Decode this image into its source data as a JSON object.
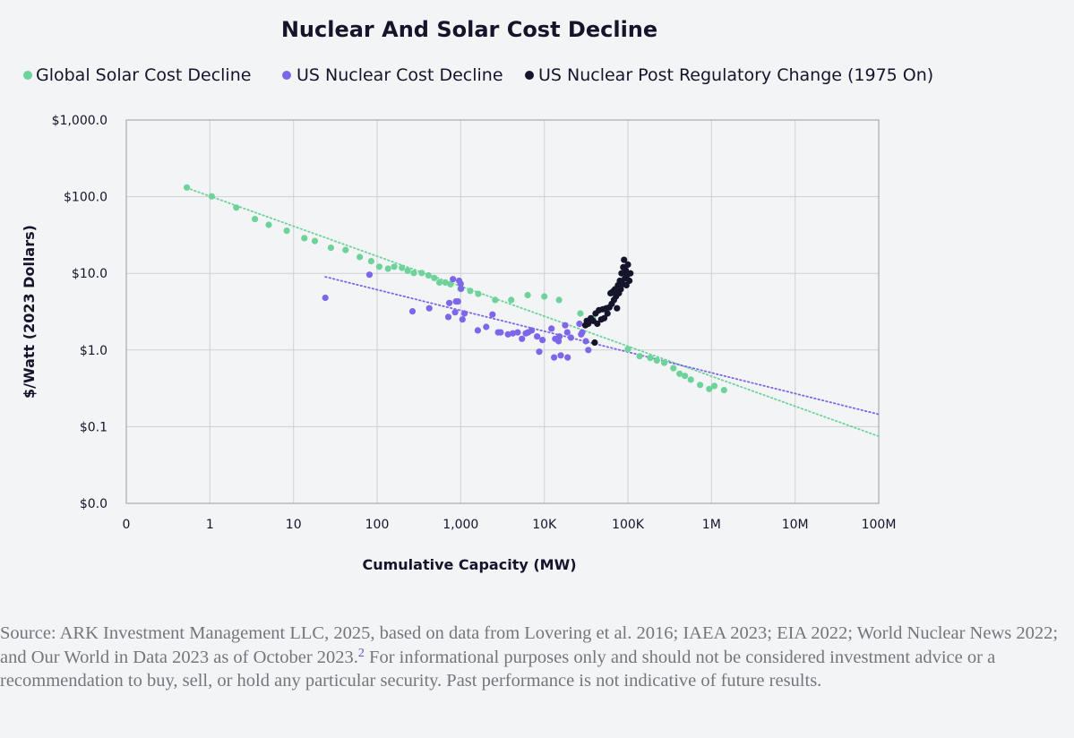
{
  "chart_data": {
    "type": "scatter",
    "title": "Nuclear And Solar Cost Decline",
    "xlabel": "Cumulative Capacity (MW)",
    "ylabel": "$/Watt (2023 Dollars)",
    "x_scale": "log",
    "y_scale": "log",
    "xlim": [
      0.1,
      100000000
    ],
    "ylim": [
      0.01,
      1000
    ],
    "x_tick_values": [
      0.1,
      1,
      10,
      100,
      1000,
      10000,
      100000,
      1000000,
      10000000,
      100000000
    ],
    "x_tick_labels": [
      "0",
      "1",
      "10",
      "100",
      "1,000",
      "10K",
      "100K",
      "1M",
      "10M",
      "100M"
    ],
    "y_tick_values": [
      0.01,
      0.1,
      1,
      10,
      100,
      1000
    ],
    "y_tick_labels": [
      "$0.0",
      "$0.1",
      "$1.0",
      "$10.0",
      "$100.0",
      "$1,000.0"
    ],
    "legend_position": "top",
    "series": [
      {
        "name": "Global Solar Cost Decline",
        "color": "#6dd39b",
        "x": [
          0.53,
          1.05,
          2.07,
          3.46,
          5.05,
          8.3,
          13.5,
          18,
          28,
          42,
          62,
          85,
          106,
          135,
          160,
          198,
          232,
          275,
          342,
          412,
          482,
          556,
          655,
          755,
          995,
          1300,
          1620,
          2580,
          4020,
          6320,
          10000,
          15000,
          27000,
          38000,
          100000,
          138000,
          185000,
          222000,
          272000,
          350000,
          415000,
          480000,
          565000,
          730000,
          940000,
          1080000,
          1410000
        ],
        "y": [
          132,
          101,
          72,
          51,
          43,
          36,
          28.8,
          26.4,
          21.6,
          20.2,
          16.3,
          14.4,
          12.2,
          11.5,
          12.2,
          11.8,
          10.8,
          10.1,
          10.1,
          9.4,
          8.7,
          7.6,
          7.6,
          7.2,
          6.3,
          5.9,
          5.4,
          4.5,
          4.5,
          5.2,
          5.0,
          4.5,
          3.0,
          2.6,
          1.03,
          0.83,
          0.79,
          0.73,
          0.68,
          0.58,
          0.49,
          0.46,
          0.41,
          0.35,
          0.31,
          0.34,
          0.3
        ]
      },
      {
        "name": "US Nuclear Cost Decline",
        "color": "#7d66ea",
        "x": [
          24,
          81,
          265,
          420,
          710,
          730,
          808,
          858,
          878,
          928,
          958,
          1000,
          1010,
          1050,
          1108,
          1600,
          2020,
          2400,
          2800,
          3000,
          3680,
          4200,
          4800,
          5400,
          6000,
          6400,
          7050,
          8200,
          8700,
          9500,
          12200,
          13500,
          14800,
          15200,
          17800,
          18800,
          20800,
          26300,
          27600,
          28400,
          31400,
          33600,
          13100,
          15700,
          19000
        ],
        "y": [
          4.8,
          9.6,
          3.2,
          3.5,
          2.7,
          4.1,
          8.4,
          3.1,
          4.3,
          4.3,
          8.0,
          7.3,
          6.3,
          2.5,
          3.0,
          1.8,
          2.0,
          2.9,
          1.7,
          1.7,
          1.6,
          1.65,
          1.7,
          1.4,
          1.65,
          1.7,
          1.8,
          1.5,
          0.95,
          1.35,
          1.9,
          1.4,
          1.3,
          1.5,
          2.1,
          1.7,
          1.45,
          2.2,
          1.6,
          1.7,
          1.3,
          1.0,
          0.8,
          0.85,
          0.8
        ]
      },
      {
        "name": "US Nuclear Post Regulatory Change (1975 On)",
        "color": "#14142b",
        "x": [
          31000,
          32200,
          33500,
          36000,
          38500,
          41000,
          43000,
          45000,
          48000,
          50000,
          52000,
          55000,
          57000,
          60000,
          62000,
          64000,
          66000,
          68000,
          70000,
          72000,
          74000,
          76000,
          78000,
          80000,
          82000,
          84000,
          86000,
          88000,
          90000,
          92000,
          94000,
          96000,
          98000,
          100000,
          104000,
          107000,
          40000
        ],
        "y": [
          2.1,
          2.4,
          2.2,
          2.6,
          2.4,
          3.0,
          2.2,
          3.3,
          2.5,
          3.4,
          2.6,
          3.5,
          3.0,
          3.6,
          5.5,
          4.0,
          5.8,
          4.5,
          6.2,
          5.0,
          3.5,
          7.0,
          5.5,
          8.0,
          6.2,
          10.0,
          7.2,
          12.0,
          15.0,
          8.5,
          11.0,
          7.0,
          9.5,
          13.0,
          8.0,
          10.0,
          1.25
        ]
      }
    ],
    "trendlines": [
      {
        "series": "Global Solar Cost Decline",
        "style": "dotted",
        "x": [
          0.53,
          100000000
        ],
        "y": [
          130,
          0.075
        ]
      },
      {
        "series": "US Nuclear Cost Decline",
        "style": "dotted",
        "x": [
          24,
          100000000
        ],
        "y": [
          9.0,
          0.145
        ]
      }
    ]
  },
  "source": {
    "text": "Source: ARK Investment Management LLC, 2025, based on data from Lovering et al. 2016; IAEA 2023; EIA 2022; World Nuclear News 2022; and Our World in Data 2023 as of October 2023.",
    "footnote": "2",
    "text_after": " For informational purposes only and should not be considered investment advice or a recommendation to buy, sell, or hold any particular security. Past performance is not indicative of future results."
  }
}
